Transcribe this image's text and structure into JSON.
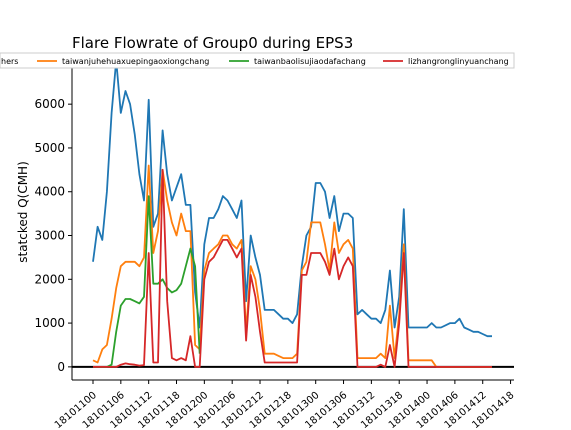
{
  "chart_data": {
    "type": "line",
    "title": "Flare Flowrate of Group0 during EPS3",
    "xlabel": "",
    "ylabel": "statcked Q(CMH)",
    "ylim": [
      -300,
      7100
    ],
    "yticks": [
      0,
      1000,
      2000,
      3000,
      4000,
      5000,
      6000,
      7000
    ],
    "xtick_labels": [
      "18101100",
      "18101106",
      "18101112",
      "18101118",
      "18101200",
      "18101206",
      "18101212",
      "18101218",
      "18101300",
      "18101306",
      "18101312",
      "18101318",
      "18101400",
      "18101406",
      "18101412",
      "18101418"
    ],
    "legend": {
      "placement": "top",
      "entries": [
        "hers",
        "taiwanjuhehuaxuepingaoxiongchang",
        "taiwanbaolisujiaodafachang",
        "lizhangronglinyuanchang"
      ]
    },
    "grid": false,
    "series": [
      {
        "name": "hers",
        "color": "#1f77b4",
        "values": [
          2400,
          3200,
          2900,
          4000,
          5800,
          7000,
          5800,
          6300,
          6000,
          5300,
          4400,
          3800,
          6100,
          3200,
          3500,
          5400,
          4400,
          3800,
          4100,
          4400,
          3700,
          3700,
          1700,
          900,
          2800,
          3400,
          3400,
          3600,
          3900,
          3800,
          3600,
          3400,
          3800,
          1500,
          3000,
          2500,
          2100,
          1300,
          1300,
          1300,
          1200,
          1100,
          1100,
          1000,
          1200,
          2300,
          3000,
          3200,
          4200,
          4200,
          4000,
          3400,
          3900,
          3100,
          3500,
          3500,
          3400,
          1200,
          1300,
          1200,
          1100,
          1100,
          1000,
          1300,
          2200,
          900,
          1600,
          3600,
          900,
          900,
          900,
          900,
          900,
          1000,
          900,
          900,
          950,
          1000,
          1000,
          1100,
          900,
          850,
          800,
          800,
          750,
          700,
          700
        ]
      },
      {
        "name": "taiwanjuhehuaxuepingaoxiongchang",
        "color": "#ff7f0e",
        "values": [
          150,
          100,
          400,
          500,
          1100,
          1800,
          2300,
          2400,
          2400,
          2400,
          2300,
          2500,
          4600,
          2600,
          3100,
          4500,
          3800,
          3300,
          3000,
          3500,
          3100,
          3100,
          500,
          400,
          2200,
          2600,
          2700,
          2800,
          3000,
          3000,
          2800,
          2700,
          2900,
          800,
          2300,
          2000,
          1300,
          300,
          300,
          300,
          250,
          200,
          200,
          200,
          300,
          2200,
          2400,
          3300,
          3300,
          3300,
          2800,
          2200,
          3300,
          2600,
          2800,
          2900,
          2700,
          200,
          200,
          200,
          200,
          200,
          300,
          200,
          1400,
          200,
          1200,
          2800,
          150,
          150,
          150,
          150,
          150,
          150,
          0,
          0,
          0,
          0,
          0,
          0,
          0,
          0,
          0,
          0,
          0,
          0,
          0
        ]
      },
      {
        "name": "taiwanbaolisujiaodafachang",
        "color": "#2ca02c",
        "values": [
          0,
          0,
          0,
          0,
          50,
          800,
          1400,
          1550,
          1550,
          1500,
          1450,
          1600,
          3900,
          1900,
          1900,
          2000,
          1800,
          1700,
          1750,
          1900,
          2300,
          2700,
          2300,
          300,
          null,
          null,
          null,
          null,
          null,
          null,
          null,
          null,
          null,
          null,
          null,
          null,
          null,
          null,
          null,
          null,
          null,
          null,
          null,
          null,
          null,
          null,
          null,
          null,
          null,
          null,
          null,
          null,
          null,
          null,
          null,
          null,
          null,
          null,
          null,
          null,
          null,
          null,
          null,
          null,
          null,
          null,
          null,
          null,
          null,
          null,
          null,
          null,
          null,
          null,
          null,
          null,
          null,
          null,
          null,
          null,
          null,
          null,
          null,
          null,
          null,
          null,
          null
        ]
      },
      {
        "name": "lizhangronglinyuanchang",
        "color": "#d62728",
        "values": [
          0,
          0,
          0,
          0,
          0,
          0,
          50,
          80,
          60,
          50,
          30,
          40,
          2600,
          100,
          100,
          4500,
          1500,
          200,
          150,
          200,
          150,
          700,
          0,
          0,
          2000,
          2400,
          2500,
          2700,
          2900,
          2900,
          2700,
          2500,
          2700,
          600,
          2100,
          1600,
          800,
          100,
          100,
          100,
          100,
          100,
          100,
          100,
          100,
          2100,
          2100,
          2600,
          2600,
          2600,
          2400,
          2100,
          2700,
          2000,
          2300,
          2500,
          2300,
          0,
          0,
          0,
          0,
          0,
          50,
          0,
          500,
          0,
          1000,
          2600,
          0,
          0,
          0,
          0,
          0,
          0,
          0,
          0,
          0,
          0,
          0,
          0,
          0,
          0,
          0,
          0,
          0,
          0,
          0
        ]
      }
    ]
  }
}
